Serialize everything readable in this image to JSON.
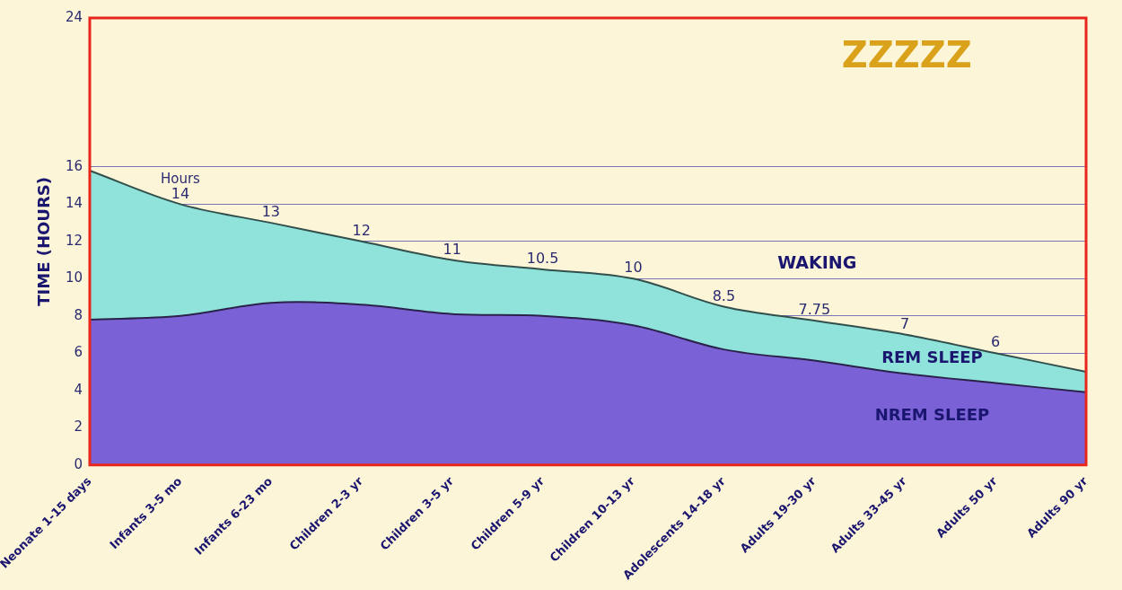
{
  "chart_data": {
    "type": "area",
    "categories": [
      "Neonate 1-15 days",
      "Infants 3-5 mo",
      "Infants 6-23 mo",
      "Children 2-3 yr",
      "Children 3-5 yr",
      "Children 5-9 yr",
      "Children 10-13 yr",
      "Adolescents 14-18 yr",
      "Adults 19-30 yr",
      "Adults 33-45 yr",
      "Adults 50 yr",
      "Adults 90 yr"
    ],
    "series": [
      {
        "name": "NREM SLEEP",
        "color": "#7a62d6",
        "values": [
          7.8,
          8.0,
          8.7,
          8.6,
          8.1,
          8.0,
          7.5,
          6.2,
          5.6,
          4.9,
          4.4,
          3.9
        ]
      },
      {
        "name": "REM SLEEP",
        "color": "#8fe3da",
        "values": [
          15.8,
          14,
          13,
          12,
          11,
          10.5,
          10,
          8.5,
          7.75,
          7,
          6,
          5
        ],
        "value_labels": [
          null,
          "14",
          "13",
          "12",
          "11",
          "10.5",
          "10",
          "8.5",
          "7.75",
          "7",
          "6",
          null
        ]
      }
    ],
    "ylabel": "TIME (HOURS)",
    "ylim": [
      0,
      24
    ],
    "yticks": [
      0,
      2,
      4,
      6,
      8,
      10,
      12,
      14,
      16,
      24
    ],
    "grid": "y",
    "legend": false,
    "marker": "none",
    "annotations": [
      "WAKING",
      "ZZZZZ",
      {
        "text": "Hours",
        "x": "Infants 3-5 mo",
        "y": 14
      }
    ]
  }
}
